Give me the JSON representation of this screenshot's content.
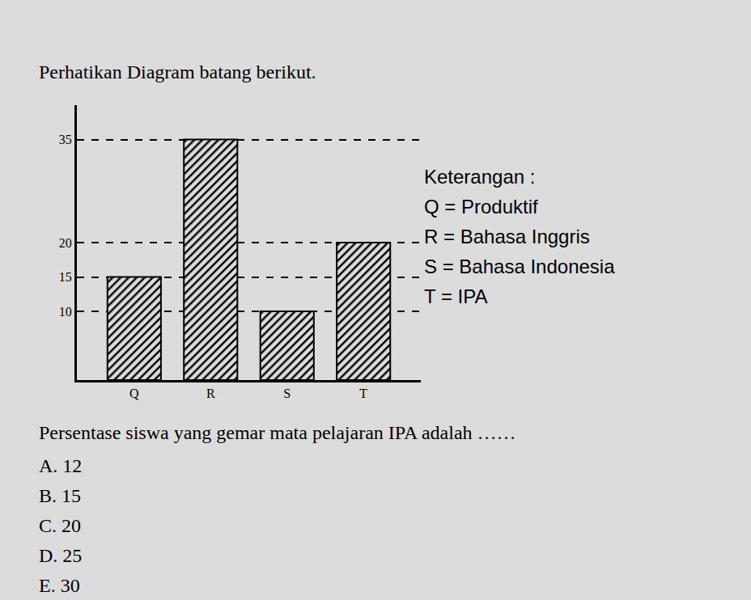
{
  "heading": "Perhatikan Diagram batang berikut.",
  "chart_data": {
    "type": "bar",
    "categories": [
      "Q",
      "R",
      "S",
      "T"
    ],
    "values": [
      15,
      35,
      10,
      20
    ],
    "color": "#000000",
    "ylim": [
      0,
      40
    ],
    "yticks": [
      10,
      15,
      20,
      35
    ],
    "grid": true
  },
  "keterangan": {
    "title": "Keterangan :",
    "items": [
      "Q = Produktif",
      "R = Bahasa Inggris",
      "S = Bahasa Indonesia",
      "T = IPA"
    ]
  },
  "question": "Persentase siswa yang gemar mata pelajaran IPA adalah ……",
  "options": [
    "A. 12",
    "B. 15",
    "C. 20",
    "D. 25",
    "E. 30"
  ]
}
